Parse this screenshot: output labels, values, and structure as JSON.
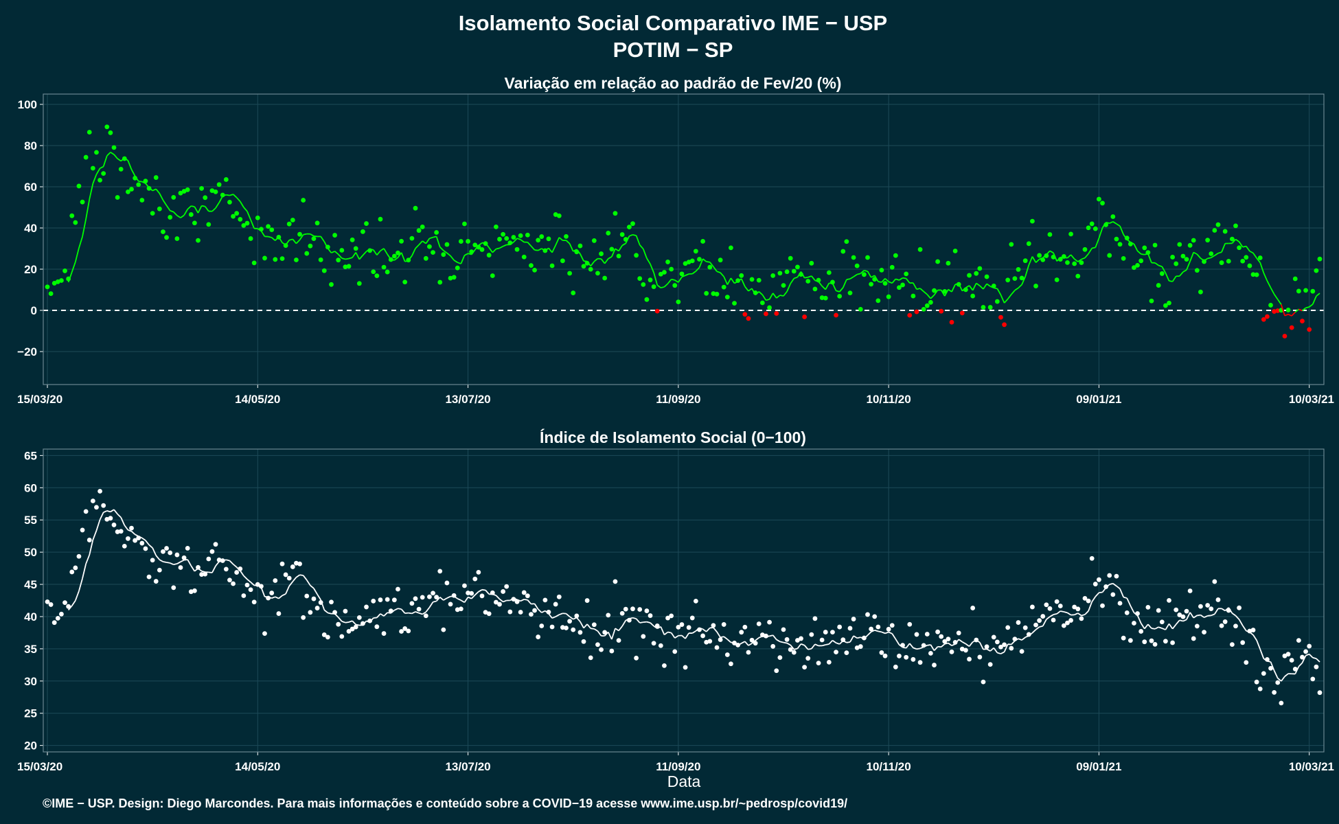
{
  "title": "Isolamento Social Comparativo IME − USP",
  "subtitle": "POTIM − SP",
  "xlabel": "Data",
  "footer": "©IME − USP. Design: Diego Marcondes. Para mais informações e conteúdo sobre a COVID−19 acesse www.ime.usp.br/~pedrosp/covid19/",
  "colors": {
    "background": "#022935",
    "positive": "#00ff00",
    "negative": "#ff0000",
    "index": "#ffffff",
    "grid": "#1d4a58"
  },
  "chart_data": [
    {
      "type": "scatter",
      "title": "Variação em relação ao padrão de Fev/20 (%)",
      "x_ticks": [
        "15/03/20",
        "14/05/20",
        "13/07/20",
        "11/09/20",
        "10/11/20",
        "09/01/21",
        "10/03/21"
      ],
      "y_ticks": [
        "100",
        "80",
        "60",
        "40",
        "20",
        "0",
        "−20"
      ],
      "ylim": [
        -36,
        105
      ],
      "reference_line": 0,
      "grid": true,
      "series": [
        {
          "points": "daily",
          "moving_average": "7-day",
          "color_rule": "green >= 0, red < 0"
        }
      ],
      "anchors": [
        {
          "x": "15/03/20",
          "y": 5
        },
        {
          "x": "21/03/20",
          "y": 30
        },
        {
          "x": "26/03/20",
          "y": 76
        },
        {
          "x": "31/03/20",
          "y": 75
        },
        {
          "x": "07/04/20",
          "y": 62
        },
        {
          "x": "15/04/20",
          "y": 52
        },
        {
          "x": "25/04/20",
          "y": 53
        },
        {
          "x": "05/05/20",
          "y": 50
        },
        {
          "x": "14/05/20",
          "y": 34
        },
        {
          "x": "25/05/20",
          "y": 40
        },
        {
          "x": "05/06/20",
          "y": 25
        },
        {
          "x": "15/06/20",
          "y": 33
        },
        {
          "x": "25/06/20",
          "y": 28
        },
        {
          "x": "05/07/20",
          "y": 33
        },
        {
          "x": "13/07/20",
          "y": 35
        },
        {
          "x": "25/07/20",
          "y": 30
        },
        {
          "x": "05/08/20",
          "y": 33
        },
        {
          "x": "15/08/20",
          "y": 18
        },
        {
          "x": "25/08/20",
          "y": 33
        },
        {
          "x": "05/09/20",
          "y": 22
        },
        {
          "x": "11/09/20",
          "y": 18
        },
        {
          "x": "25/09/20",
          "y": 17
        },
        {
          "x": "05/10/20",
          "y": 9
        },
        {
          "x": "15/10/20",
          "y": 16
        },
        {
          "x": "25/10/20",
          "y": 10
        },
        {
          "x": "05/11/20",
          "y": 19
        },
        {
          "x": "10/11/20",
          "y": 16
        },
        {
          "x": "20/11/20",
          "y": 8
        },
        {
          "x": "30/11/20",
          "y": 13
        },
        {
          "x": "10/12/20",
          "y": 0
        },
        {
          "x": "20/12/20",
          "y": 20
        },
        {
          "x": "01/01/21",
          "y": 26
        },
        {
          "x": "09/01/21",
          "y": 42
        },
        {
          "x": "20/01/21",
          "y": 25
        },
        {
          "x": "01/02/21",
          "y": 21
        },
        {
          "x": "10/02/21",
          "y": 36
        },
        {
          "x": "20/02/21",
          "y": 22
        },
        {
          "x": "25/02/21",
          "y": 7
        },
        {
          "x": "28/02/21",
          "y": -9
        },
        {
          "x": "05/03/21",
          "y": 3
        },
        {
          "x": "10/03/21",
          "y": 8
        },
        {
          "x": "13/03/21",
          "y": 10
        }
      ]
    },
    {
      "type": "scatter",
      "title": "Índice de Isolamento Social (0−100)",
      "x_ticks": [
        "15/03/20",
        "14/05/20",
        "13/07/20",
        "11/09/20",
        "10/11/20",
        "09/01/21",
        "10/03/21"
      ],
      "y_ticks": [
        "65",
        "60",
        "55",
        "50",
        "45",
        "40",
        "35",
        "30",
        "25",
        "20"
      ],
      "ylim": [
        19,
        66
      ],
      "grid": true,
      "series": [
        {
          "points": "daily",
          "moving_average": "7-day",
          "color": "#ffffff"
        }
      ],
      "anchors": [
        {
          "x": "15/03/20",
          "y": 40
        },
        {
          "x": "21/03/20",
          "y": 42
        },
        {
          "x": "26/03/20",
          "y": 56
        },
        {
          "x": "31/03/20",
          "y": 57
        },
        {
          "x": "07/04/20",
          "y": 51
        },
        {
          "x": "15/04/20",
          "y": 48
        },
        {
          "x": "25/04/20",
          "y": 48
        },
        {
          "x": "05/05/20",
          "y": 47
        },
        {
          "x": "14/05/20",
          "y": 43
        },
        {
          "x": "25/05/20",
          "y": 44
        },
        {
          "x": "05/06/20",
          "y": 38
        },
        {
          "x": "15/06/20",
          "y": 42
        },
        {
          "x": "25/06/20",
          "y": 40
        },
        {
          "x": "05/07/20",
          "y": 42
        },
        {
          "x": "13/07/20",
          "y": 42
        },
        {
          "x": "25/07/20",
          "y": 41
        },
        {
          "x": "05/08/20",
          "y": 41
        },
        {
          "x": "15/08/20",
          "y": 37
        },
        {
          "x": "25/08/20",
          "y": 41
        },
        {
          "x": "05/09/20",
          "y": 38
        },
        {
          "x": "11/09/20",
          "y": 37
        },
        {
          "x": "25/09/20",
          "y": 37
        },
        {
          "x": "05/10/20",
          "y": 35
        },
        {
          "x": "15/10/20",
          "y": 37
        },
        {
          "x": "25/10/20",
          "y": 35
        },
        {
          "x": "05/11/20",
          "y": 38
        },
        {
          "x": "10/11/20",
          "y": 37
        },
        {
          "x": "20/11/20",
          "y": 35
        },
        {
          "x": "30/11/20",
          "y": 36
        },
        {
          "x": "10/12/20",
          "y": 33
        },
        {
          "x": "20/12/20",
          "y": 39
        },
        {
          "x": "01/01/21",
          "y": 40
        },
        {
          "x": "09/01/21",
          "y": 45
        },
        {
          "x": "20/01/21",
          "y": 39
        },
        {
          "x": "01/02/21",
          "y": 38
        },
        {
          "x": "10/02/21",
          "y": 42
        },
        {
          "x": "20/02/21",
          "y": 36
        },
        {
          "x": "25/02/21",
          "y": 32
        },
        {
          "x": "28/02/21",
          "y": 29
        },
        {
          "x": "05/03/21",
          "y": 33
        },
        {
          "x": "10/03/21",
          "y": 35
        },
        {
          "x": "13/03/21",
          "y": 29
        }
      ]
    }
  ]
}
